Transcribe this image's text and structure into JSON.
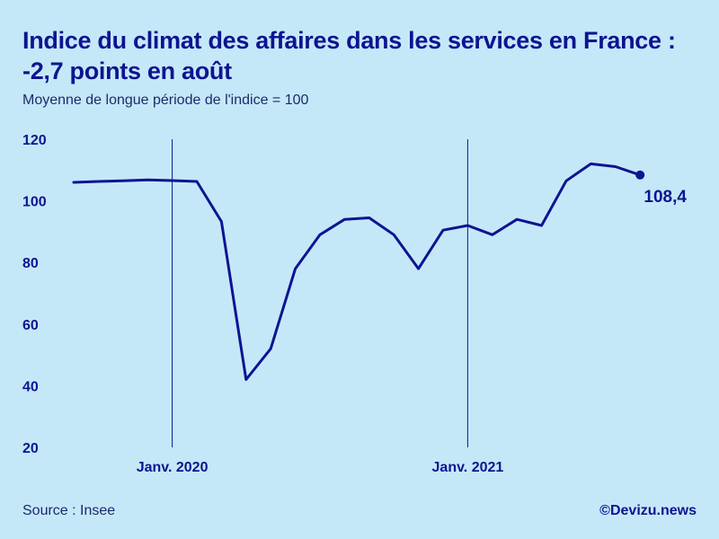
{
  "header": {
    "title": "Indice du climat des affaires dans les services en France : -2,7 points en août",
    "subtitle": "Moyenne de longue période de l'indice = 100"
  },
  "footer": {
    "source": "Source : Insee",
    "credit": "©Devizu.news"
  },
  "colors": {
    "line": "#0d1491",
    "background": "#c5e8f8",
    "text": "#0d1491"
  },
  "chart_data": {
    "type": "line",
    "title": "Indice du climat des affaires dans les services en France : -2,7 points en août",
    "subtitle": "Moyenne de longue période de l'indice = 100",
    "xlabel": "",
    "ylabel": "",
    "ylim": [
      20,
      120
    ],
    "y_ticks": [
      "20",
      "40",
      "60",
      "80",
      "100",
      "120"
    ],
    "x_tick_labels": [
      {
        "label": "Janv. 2020",
        "x": "2020-01"
      },
      {
        "label": "Janv. 2021",
        "x": "2021-01"
      }
    ],
    "grid": false,
    "series": [
      {
        "name": "",
        "x": [
          "2019-09",
          "2019-10",
          "2019-11",
          "2019-12",
          "2020-01",
          "2020-02",
          "2020-03",
          "2020-04",
          "2020-05",
          "2020-06",
          "2020-07",
          "2020-08",
          "2020-09",
          "2020-10",
          "2020-11",
          "2020-12",
          "2021-01",
          "2021-02",
          "2021-03",
          "2021-04",
          "2021-05",
          "2021-06",
          "2021-07",
          "2021-08"
        ],
        "values": [
          106,
          106.3,
          106.5,
          106.8,
          106.6,
          106.3,
          93.3,
          42,
          52,
          78,
          89,
          94,
          94.5,
          89,
          78,
          90.5,
          92,
          89,
          94,
          92,
          106.5,
          112,
          111.1,
          108.4
        ]
      }
    ],
    "annotations": [
      {
        "text": "108,4",
        "x": "2021-08",
        "y": 108.4
      }
    ]
  }
}
